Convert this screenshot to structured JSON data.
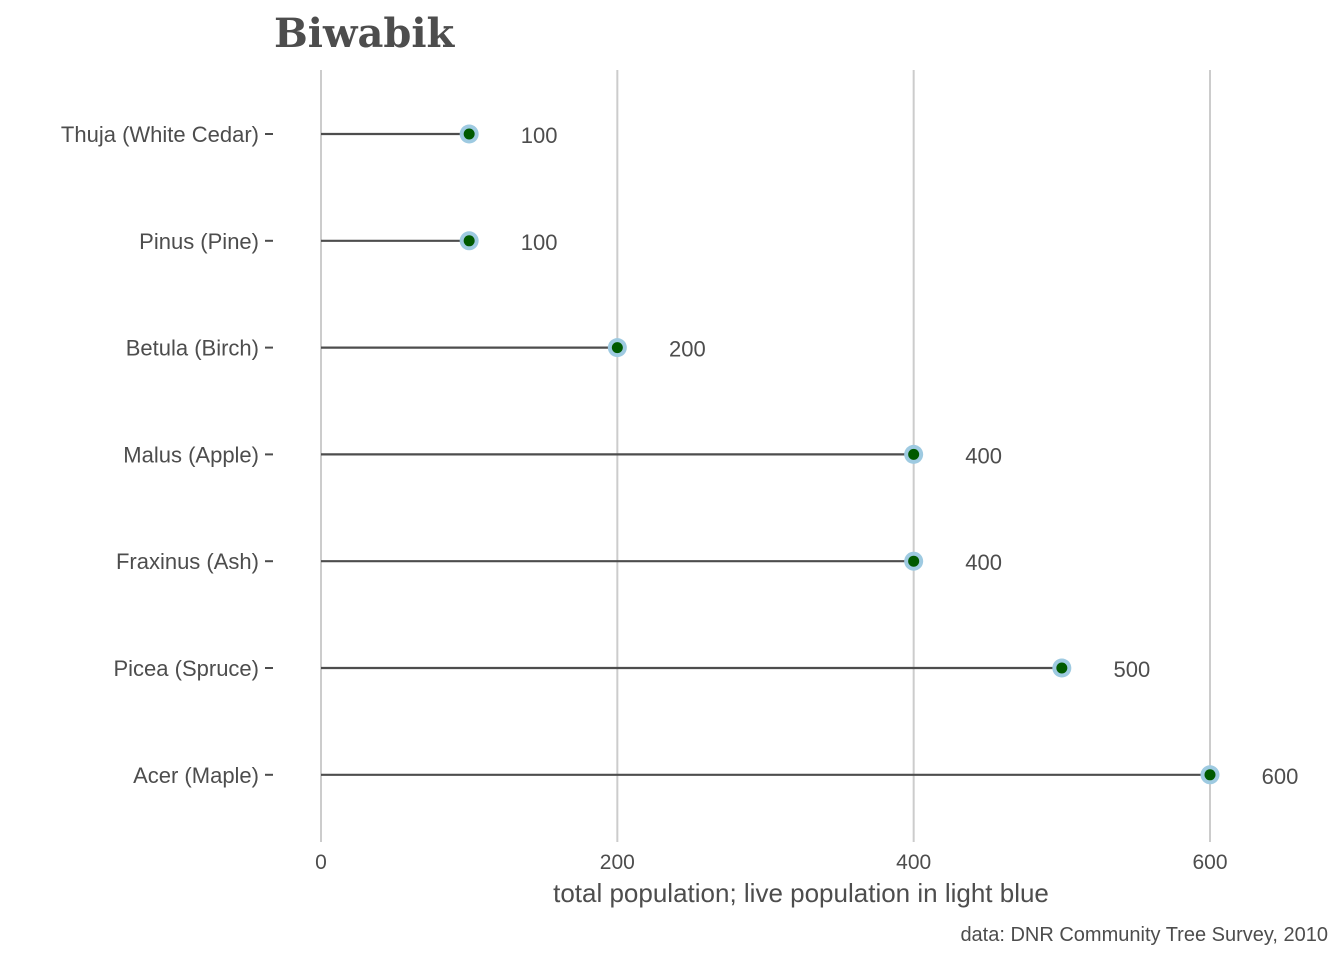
{
  "chart_data": {
    "type": "lollipop",
    "title": "Biwabik",
    "xlabel": "total population; live population in light blue",
    "caption": "data: DNR Community Tree Survey, 2010",
    "xlim": [
      0,
      600
    ],
    "xticks": [
      0,
      200,
      400,
      600
    ],
    "grid": "vertical major gridlines",
    "categories": [
      "Thuja (White Cedar)",
      "Pinus (Pine)",
      "Betula (Birch)",
      "Malus (Apple)",
      "Fraxinus (Ash)",
      "Picea (Spruce)",
      "Acer (Maple)"
    ],
    "total": [
      100,
      100,
      200,
      400,
      400,
      500,
      600
    ],
    "live": [
      100,
      100,
      200,
      400,
      400,
      500,
      600
    ],
    "value_labels": [
      "100",
      "100",
      "200",
      "400",
      "400",
      "500",
      "600"
    ],
    "colors": {
      "total_point": "#005a00",
      "live_point": "#9ecae1",
      "segment": "#4d4d4d",
      "grid": "#cccccc",
      "text": "#4d4d4d"
    }
  }
}
